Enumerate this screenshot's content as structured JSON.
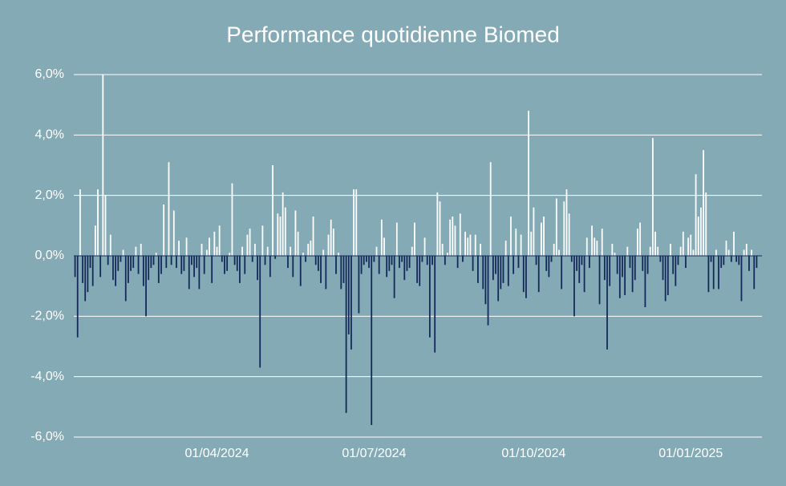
{
  "chart_data": {
    "type": "bar",
    "title": "Performance quotidienne Biomed",
    "categories": [
      null,
      null,
      null,
      null,
      null,
      null,
      null,
      null,
      null,
      null,
      null,
      null,
      null,
      null,
      null,
      null,
      null,
      null,
      null,
      null,
      null,
      null,
      null,
      null,
      null,
      null,
      null,
      null,
      null,
      null,
      null,
      null,
      null,
      null,
      null,
      null,
      null,
      null,
      null,
      null,
      null,
      null,
      null,
      null,
      null,
      null,
      null,
      null,
      null,
      null,
      null,
      null,
      null,
      null,
      null,
      null,
      "01/04/2024",
      null,
      null,
      null,
      null,
      null,
      null,
      null,
      null,
      null,
      null,
      null,
      null,
      null,
      null,
      null,
      null,
      null,
      null,
      null,
      null,
      null,
      null,
      null,
      null,
      null,
      null,
      null,
      null,
      null,
      null,
      null,
      null,
      null,
      null,
      null,
      null,
      null,
      null,
      null,
      null,
      null,
      null,
      null,
      null,
      null,
      null,
      null,
      null,
      null,
      null,
      null,
      null,
      null,
      null,
      null,
      null,
      null,
      null,
      null,
      null,
      null,
      "01/07/2024",
      null,
      null,
      null,
      null,
      null,
      null,
      null,
      null,
      null,
      null,
      null,
      null,
      null,
      null,
      null,
      null,
      null,
      null,
      null,
      null,
      null,
      null,
      null,
      null,
      null,
      null,
      null,
      null,
      null,
      null,
      null,
      null,
      null,
      null,
      null,
      null,
      null,
      null,
      null,
      null,
      null,
      null,
      null,
      null,
      null,
      null,
      null,
      null,
      null,
      null,
      null,
      null,
      null,
      null,
      null,
      null,
      null,
      null,
      null,
      null,
      null,
      null,
      "01/10/2024",
      null,
      null,
      null,
      null,
      null,
      null,
      null,
      null,
      null,
      null,
      null,
      null,
      null,
      null,
      null,
      null,
      null,
      null,
      null,
      null,
      null,
      null,
      null,
      null,
      null,
      null,
      null,
      null,
      null,
      null,
      null,
      null,
      null,
      null,
      null,
      null,
      null,
      null,
      null,
      null,
      null,
      null,
      null,
      null,
      null,
      null,
      null,
      null,
      null,
      null,
      null,
      null,
      null,
      null,
      null,
      null,
      null,
      null,
      null,
      null,
      null,
      "01/01/2025",
      null,
      null,
      null,
      null,
      null,
      null,
      null,
      null,
      null,
      null,
      null,
      null,
      null,
      null,
      null,
      null,
      null,
      null,
      null,
      null,
      null,
      null,
      null,
      null,
      null,
      null
    ],
    "values": [
      -0.7,
      -2.7,
      2.2,
      -0.9,
      -1.5,
      -1.2,
      -0.4,
      -1.0,
      1.0,
      2.2,
      -0.7,
      6.0,
      2.0,
      -0.3,
      0.7,
      -0.8,
      -1.0,
      -0.5,
      -0.2,
      0.2,
      -1.5,
      -0.9,
      -0.5,
      -0.4,
      0.3,
      -0.6,
      0.4,
      -1.0,
      -2.0,
      -0.8,
      -0.4,
      -0.3,
      0.1,
      -0.9,
      -0.6,
      1.7,
      -0.4,
      3.1,
      -0.3,
      1.5,
      -0.4,
      0.5,
      -0.6,
      -0.5,
      0.6,
      -1.1,
      -0.3,
      -0.7,
      -0.4,
      -1.1,
      0.4,
      -0.6,
      0.2,
      0.6,
      -0.9,
      0.8,
      0.3,
      1.0,
      -0.2,
      -0.6,
      -0.5,
      0.1,
      2.4,
      -0.3,
      -0.5,
      -0.9,
      0.3,
      -0.6,
      0.7,
      0.9,
      -0.2,
      0.4,
      -0.8,
      -3.7,
      1.0,
      -0.3,
      0.3,
      -0.7,
      3.0,
      -0.1,
      1.4,
      1.3,
      2.1,
      1.6,
      -0.4,
      0.3,
      -0.7,
      1.5,
      0.8,
      -1.0,
      0.1,
      -0.2,
      0.4,
      0.5,
      1.3,
      -0.3,
      -0.5,
      -0.9,
      0.2,
      -1.1,
      0.7,
      1.2,
      0.9,
      -0.6,
      0.1,
      -1.1,
      -0.9,
      -5.2,
      -2.6,
      -3.1,
      2.2,
      2.2,
      -1.9,
      -0.6,
      -0.3,
      -0.2,
      -0.4,
      -5.6,
      -0.2,
      0.3,
      -0.6,
      1.2,
      0.6,
      -0.7,
      -0.5,
      -0.3,
      -1.4,
      1.1,
      -0.4,
      -0.2,
      -0.8,
      -0.5,
      -0.4,
      0.3,
      1.1,
      -0.9,
      -1.0,
      -0.2,
      0.6,
      -0.3,
      -2.7,
      -0.3,
      -3.2,
      2.1,
      1.8,
      0.4,
      -0.3,
      0.1,
      1.2,
      1.3,
      1.0,
      -0.4,
      1.4,
      -0.2,
      0.8,
      0.6,
      0.7,
      -0.5,
      0.7,
      -0.9,
      0.4,
      -1.1,
      -1.6,
      -2.3,
      3.1,
      -0.8,
      -0.6,
      -1.5,
      -1.1,
      -0.9,
      0.5,
      -1.0,
      1.3,
      -0.6,
      0.9,
      -0.4,
      0.7,
      -1.2,
      -1.4,
      4.8,
      0.8,
      1.6,
      -0.3,
      -1.2,
      1.1,
      1.3,
      -0.5,
      -0.7,
      -0.2,
      0.4,
      1.9,
      0.2,
      -1.1,
      1.8,
      2.2,
      1.4,
      -0.2,
      -2.0,
      -0.5,
      -0.9,
      -0.3,
      -1.2,
      0.6,
      -0.4,
      1.0,
      0.6,
      0.5,
      -1.6,
      0.9,
      -0.8,
      -3.1,
      -1.0,
      0.4,
      0.1,
      -0.6,
      -1.4,
      -0.7,
      -1.3,
      0.3,
      -0.4,
      -1.2,
      -0.8,
      0.9,
      1.1,
      -0.5,
      -1.7,
      -0.6,
      0.3,
      3.9,
      0.8,
      0.3,
      -0.2,
      -0.8,
      -1.5,
      -1.3,
      0.4,
      -0.6,
      -1.0,
      -0.3,
      0.3,
      0.8,
      -0.4,
      0.6,
      0.7,
      0.2,
      2.7,
      1.3,
      1.6,
      3.5,
      2.1,
      -1.2,
      -0.2,
      -1.1,
      0.2,
      -1.1,
      -0.4,
      -0.3,
      0.5,
      0.2,
      -0.2,
      0.8,
      -0.2,
      -0.3,
      -1.5,
      0.2,
      0.4,
      -0.5,
      0.2,
      -1.1,
      -0.4
    ],
    "color_positive": "#ffffff",
    "color_negative": "#14295a",
    "ylim": [
      -6,
      6
    ],
    "yticks": [
      {
        "value": -6,
        "label": "-6,0%"
      },
      {
        "value": -4,
        "label": "-4,0%"
      },
      {
        "value": -2,
        "label": "-2,0%"
      },
      {
        "value": 0,
        "label": "0,0%"
      },
      {
        "value": 2,
        "label": "2,0%"
      },
      {
        "value": 4,
        "label": "4,0%"
      },
      {
        "value": 6,
        "label": "6,0%"
      }
    ],
    "grid": true
  }
}
